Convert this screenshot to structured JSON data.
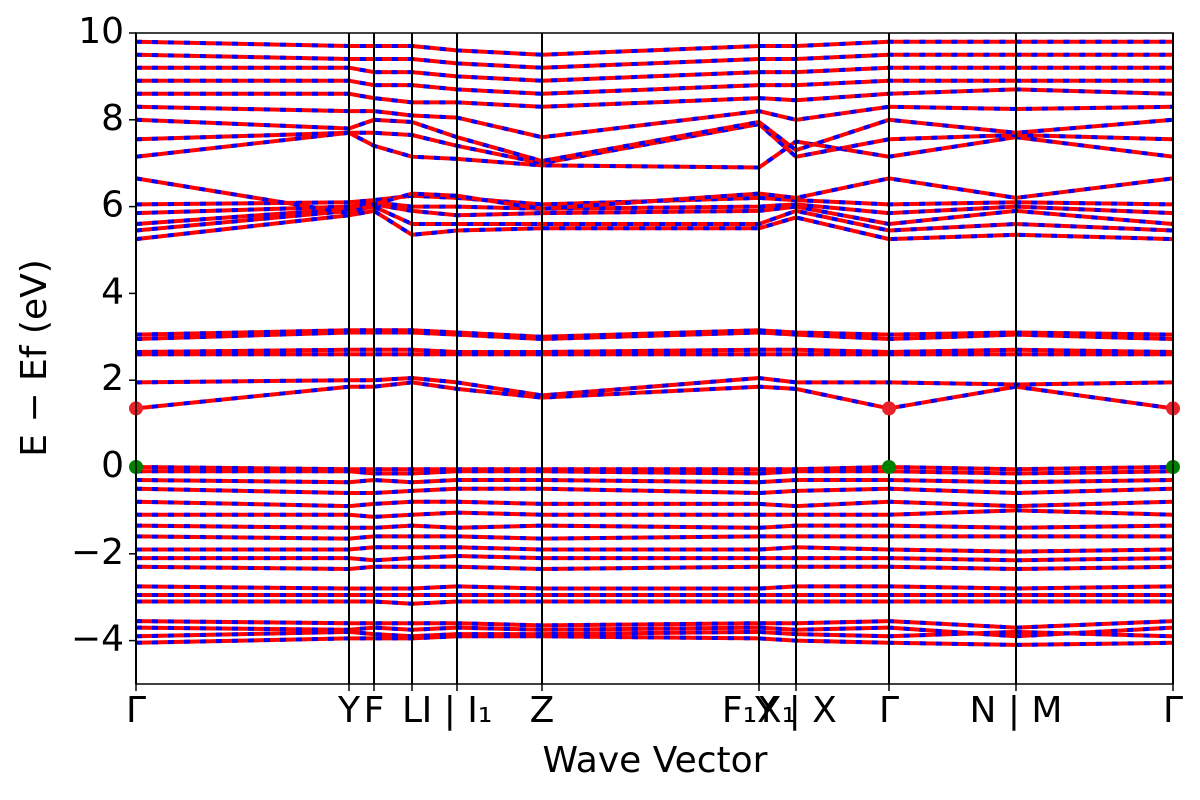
{
  "chart_data": {
    "type": "band-structure",
    "xlabel": "Wave Vector",
    "ylabel": "E − Ef (eV)",
    "xlim": [
      0,
      10.37
    ],
    "ylim": [
      -5,
      10
    ],
    "yticks": [
      {
        "value": -4,
        "label": "−4"
      },
      {
        "value": -2,
        "label": "−2"
      },
      0,
      2,
      4,
      6,
      8,
      10
    ],
    "xticks": [
      {
        "value": 0,
        "label": "Γ"
      },
      {
        "value": 2.13,
        "label": "Y"
      },
      {
        "value": 2.38,
        "label": "F"
      },
      {
        "value": 2.76,
        "label": "L"
      },
      {
        "value": 3.21,
        "label": "I | I₁"
      },
      {
        "value": 4.06,
        "label": "Z"
      },
      {
        "value": 6.23,
        "label": "F₁X₁"
      },
      {
        "value": 6.6,
        "label": "Y | X"
      },
      {
        "value": 7.53,
        "label": "Γ"
      },
      {
        "value": 8.8,
        "label": "N | M"
      },
      {
        "value": 10.37,
        "label": "Γ"
      }
    ],
    "x": [
      0,
      2.13,
      2.38,
      2.76,
      3.21,
      4.06,
      6.23,
      6.6,
      7.53,
      8.8,
      10.37
    ],
    "line_color": "#ff0000",
    "dash_color": "#0000ff",
    "bands": [
      [
        1.35,
        1.85,
        1.85,
        1.95,
        1.8,
        1.6,
        1.85,
        1.8,
        1.35,
        1.85,
        1.35
      ],
      [
        1.95,
        2.0,
        2.0,
        2.05,
        1.95,
        1.65,
        2.05,
        1.95,
        1.95,
        1.9,
        1.95
      ],
      [
        2.6,
        2.6,
        2.6,
        2.6,
        2.6,
        2.6,
        2.6,
        2.6,
        2.6,
        2.6,
        2.6
      ],
      [
        2.65,
        2.7,
        2.7,
        2.7,
        2.65,
        2.65,
        2.7,
        2.7,
        2.65,
        2.7,
        2.65
      ],
      [
        2.95,
        3.1,
        3.1,
        3.1,
        3.05,
        2.95,
        3.1,
        3.05,
        2.95,
        3.05,
        2.95
      ],
      [
        3.05,
        3.15,
        3.15,
        3.15,
        3.1,
        3.0,
        3.15,
        3.1,
        3.05,
        3.1,
        3.05
      ],
      [
        5.25,
        5.8,
        5.9,
        5.35,
        5.45,
        5.5,
        5.5,
        5.75,
        5.25,
        5.35,
        5.25
      ],
      [
        5.45,
        5.9,
        6.0,
        5.6,
        5.6,
        5.6,
        5.6,
        5.9,
        5.45,
        5.6,
        5.45
      ],
      [
        5.6,
        5.95,
        6.05,
        5.9,
        5.8,
        5.85,
        5.9,
        6.0,
        5.6,
        5.9,
        5.6
      ],
      [
        5.85,
        6.0,
        6.1,
        6.0,
        6.0,
        5.95,
        6.0,
        6.05,
        5.85,
        6.0,
        5.85
      ],
      [
        6.05,
        6.1,
        6.15,
        6.25,
        6.2,
        6.05,
        6.2,
        6.15,
        6.05,
        6.1,
        6.05
      ],
      [
        6.65,
        5.85,
        6.05,
        6.3,
        6.25,
        5.95,
        6.3,
        6.2,
        6.65,
        6.2,
        6.65
      ],
      [
        7.15,
        7.7,
        7.4,
        7.15,
        7.1,
        6.95,
        6.9,
        7.5,
        7.15,
        7.6,
        7.15
      ],
      [
        7.55,
        7.7,
        7.7,
        7.65,
        7.4,
        7.0,
        7.9,
        7.15,
        7.55,
        7.65,
        7.55
      ],
      [
        8.0,
        7.8,
        8.0,
        7.95,
        7.6,
        7.05,
        7.95,
        7.3,
        8.0,
        7.7,
        8.0
      ],
      [
        8.3,
        8.2,
        8.2,
        8.1,
        8.05,
        7.6,
        8.2,
        8.0,
        8.3,
        8.25,
        8.3
      ],
      [
        8.6,
        8.6,
        8.5,
        8.4,
        8.4,
        8.3,
        8.5,
        8.45,
        8.6,
        8.7,
        8.6
      ],
      [
        8.9,
        8.9,
        8.8,
        8.8,
        8.7,
        8.6,
        8.8,
        8.8,
        8.9,
        8.9,
        8.9
      ],
      [
        9.2,
        9.2,
        9.1,
        9.1,
        9.0,
        8.9,
        9.1,
        9.1,
        9.2,
        9.2,
        9.2
      ],
      [
        9.5,
        9.4,
        9.4,
        9.4,
        9.3,
        9.2,
        9.4,
        9.4,
        9.5,
        9.5,
        9.5
      ],
      [
        9.8,
        9.7,
        9.7,
        9.7,
        9.6,
        9.5,
        9.7,
        9.7,
        9.8,
        9.8,
        9.8
      ],
      [
        0,
        -0.05,
        -0.05,
        -0.05,
        -0.05,
        -0.05,
        -0.05,
        -0.05,
        0,
        -0.05,
        0
      ],
      [
        -0.1,
        -0.1,
        -0.15,
        -0.15,
        -0.1,
        -0.1,
        -0.15,
        -0.1,
        -0.1,
        -0.15,
        -0.1
      ],
      [
        -0.3,
        -0.35,
        -0.3,
        -0.35,
        -0.3,
        -0.3,
        -0.35,
        -0.3,
        -0.3,
        -0.35,
        -0.3
      ],
      [
        -0.5,
        -0.6,
        -0.6,
        -0.55,
        -0.5,
        -0.5,
        -0.6,
        -0.55,
        -0.5,
        -0.6,
        -0.5
      ],
      [
        -0.8,
        -0.9,
        -0.85,
        -0.8,
        -0.8,
        -0.85,
        -0.85,
        -0.9,
        -0.8,
        -0.9,
        -0.8
      ],
      [
        -1.1,
        -1.1,
        -1.15,
        -1.1,
        -1.05,
        -1.1,
        -1.1,
        -1.1,
        -1.1,
        -1.0,
        -1.1
      ],
      [
        -1.35,
        -1.4,
        -1.4,
        -1.35,
        -1.4,
        -1.35,
        -1.4,
        -1.35,
        -1.35,
        -1.4,
        -1.35
      ],
      [
        -1.6,
        -1.65,
        -1.6,
        -1.6,
        -1.6,
        -1.65,
        -1.6,
        -1.6,
        -1.6,
        -1.6,
        -1.6
      ],
      [
        -1.9,
        -1.9,
        -1.85,
        -1.85,
        -1.85,
        -1.9,
        -1.9,
        -1.85,
        -1.9,
        -1.95,
        -1.9
      ],
      [
        -2.1,
        -2.1,
        -2.15,
        -2.1,
        -2.05,
        -2.1,
        -2.1,
        -2.1,
        -2.1,
        -2.15,
        -2.1
      ],
      [
        -2.3,
        -2.35,
        -2.3,
        -2.3,
        -2.3,
        -2.35,
        -2.3,
        -2.3,
        -2.3,
        -2.35,
        -2.3
      ],
      [
        -2.75,
        -2.8,
        -2.8,
        -2.8,
        -2.75,
        -2.8,
        -2.8,
        -2.75,
        -2.75,
        -2.8,
        -2.75
      ],
      [
        -2.95,
        -2.95,
        -2.95,
        -2.95,
        -2.95,
        -2.95,
        -2.95,
        -2.95,
        -2.95,
        -2.95,
        -2.95
      ],
      [
        -3.1,
        -3.1,
        -3.1,
        -3.15,
        -3.1,
        -3.1,
        -3.1,
        -3.1,
        -3.1,
        -3.1,
        -3.1
      ],
      [
        -3.55,
        -3.6,
        -3.6,
        -3.6,
        -3.6,
        -3.65,
        -3.6,
        -3.6,
        -3.55,
        -3.7,
        -3.55
      ],
      [
        -3.7,
        -3.75,
        -3.7,
        -3.75,
        -3.7,
        -3.75,
        -3.7,
        -3.75,
        -3.7,
        -3.9,
        -3.7
      ],
      [
        -3.9,
        -3.8,
        -3.85,
        -3.9,
        -3.85,
        -3.85,
        -3.8,
        -3.85,
        -3.9,
        -3.8,
        -3.9
      ],
      [
        -4.05,
        -3.95,
        -3.95,
        -3.95,
        -3.9,
        -3.9,
        -3.95,
        -4.0,
        -4.05,
        -4.1,
        -4.05
      ]
    ],
    "cbm": {
      "x": [
        0,
        7.53,
        10.37
      ],
      "y": [
        1.35,
        1.35,
        1.35
      ],
      "color": "#e8212a"
    },
    "vbm": {
      "x": [
        0,
        7.53,
        10.37
      ],
      "y": [
        0,
        0,
        0
      ],
      "color": "#008000"
    }
  }
}
